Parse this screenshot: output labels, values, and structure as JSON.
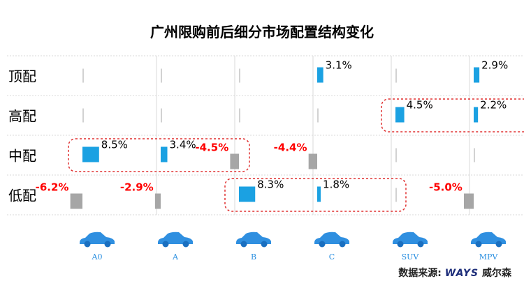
{
  "title": "广州限购前后细分市场配置结构变化",
  "source_prefix": "数据来源:",
  "source_brand": "WAYS",
  "source_suffix": "威尔森",
  "colors": {
    "positive": "#1ba1e2",
    "negative": "#a6a6a6",
    "neg_label": "#ff0000",
    "grid": "#d9d9d9",
    "highlight": "#e03030"
  },
  "chart_data": {
    "type": "bar",
    "categories": [
      "顶配",
      "高配",
      "中配",
      "低配"
    ],
    "segments": [
      "A0",
      "A",
      "B",
      "C",
      "SUV",
      "MPV"
    ],
    "series": [
      {
        "name": "A0",
        "values": [
          null,
          null,
          8.5,
          -6.2
        ]
      },
      {
        "name": "A",
        "values": [
          null,
          null,
          3.4,
          -2.9
        ]
      },
      {
        "name": "B",
        "values": [
          null,
          null,
          -4.5,
          8.3
        ]
      },
      {
        "name": "C",
        "values": [
          3.1,
          null,
          -4.4,
          1.8
        ]
      },
      {
        "name": "SUV",
        "values": [
          null,
          4.5,
          null,
          null
        ]
      },
      {
        "name": "MPV",
        "values": [
          2.9,
          2.2,
          null,
          -5.0
        ]
      }
    ],
    "labels": [
      [
        "",
        "",
        "8.5%",
        "-6.2%"
      ],
      [
        "",
        "",
        "3.4%",
        "-2.9%"
      ],
      [
        "",
        "",
        "-4.5%",
        "8.3%"
      ],
      [
        "3.1%",
        "",
        "-4.4%",
        "1.8%"
      ],
      [
        "",
        "4.5%",
        "",
        ""
      ],
      [
        "2.9%",
        "2.2%",
        "",
        "-5.0%"
      ]
    ],
    "highlights": [
      {
        "segments": [
          "SUV",
          "MPV"
        ],
        "category": "高配"
      },
      {
        "segments": [
          "A0",
          "A"
        ],
        "category": "中配"
      },
      {
        "segments": [
          "B",
          "C"
        ],
        "category": "低配"
      }
    ],
    "grid": true,
    "legend": "none"
  }
}
